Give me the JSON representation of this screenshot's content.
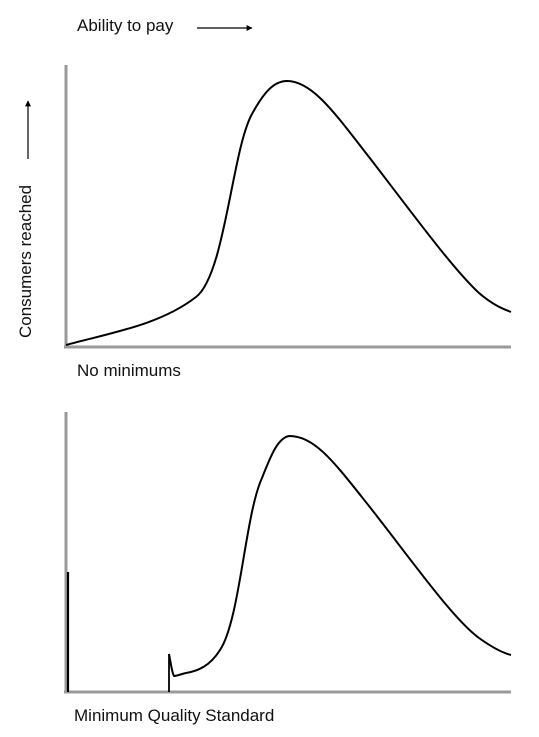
{
  "x_axis_label": "Ability to pay",
  "y_axis_label": "Consumers reached",
  "panels": [
    {
      "caption": "No minimums"
    },
    {
      "caption": "Minimum Quality Standard"
    }
  ],
  "colors": {
    "axis": "#9a9a9a",
    "curve": "#000000",
    "text": "#111111"
  }
}
